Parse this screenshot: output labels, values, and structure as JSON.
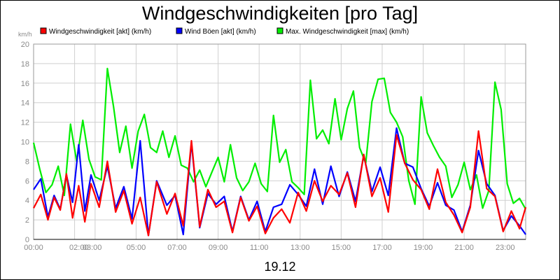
{
  "chart_data": {
    "type": "line",
    "title": "Windgeschwindigkeiten [pro Tag]",
    "date_label": "19.12",
    "ylabel": "km/h",
    "ylim": [
      0,
      20
    ],
    "yticks": [
      0,
      2,
      4,
      6,
      8,
      10,
      12,
      14,
      16,
      18,
      20
    ],
    "xlim": [
      0,
      24
    ],
    "xticks": [
      {
        "h": 0,
        "label": "00:00"
      },
      {
        "h": 2,
        "label": "02:00"
      },
      {
        "h": 3,
        "label": "03:00"
      },
      {
        "h": 5,
        "label": "05:00"
      },
      {
        "h": 7,
        "label": "07:00"
      },
      {
        "h": 9,
        "label": "09:00"
      },
      {
        "h": 11,
        "label": "11:00"
      },
      {
        "h": 13,
        "label": "13:00"
      },
      {
        "h": 15,
        "label": "15:00"
      },
      {
        "h": 17,
        "label": "17:00"
      },
      {
        "h": 19,
        "label": "19:00"
      },
      {
        "h": 21,
        "label": "21:00"
      },
      {
        "h": 23,
        "label": "23:00"
      }
    ],
    "grid": true,
    "legend_position": "top",
    "x_unit": "hour of day (0-24)",
    "series": [
      {
        "name": "Windgeschwindigkeit [akt] (km/h)",
        "color": "#ff0000",
        "x": [
          0,
          0.35,
          0.7,
          1.0,
          1.3,
          1.6,
          1.9,
          2.2,
          2.5,
          2.8,
          3.2,
          3.6,
          4.0,
          4.4,
          4.8,
          5.2,
          5.6,
          6.0,
          6.5,
          6.9,
          7.3,
          7.7,
          8.1,
          8.5,
          8.9,
          9.3,
          9.7,
          10.1,
          10.5,
          10.9,
          11.3,
          11.7,
          12.1,
          12.5,
          12.9,
          13.3,
          13.7,
          14.1,
          14.5,
          14.9,
          15.3,
          15.7,
          16.1,
          16.5,
          16.9,
          17.3,
          17.7,
          18.1,
          18.5,
          18.9,
          19.3,
          19.7,
          20.1,
          20.5,
          20.9,
          21.3,
          21.7,
          22.1,
          22.5,
          22.9,
          23.3,
          23.7,
          24.0
        ],
        "y": [
          3.2,
          4.6,
          2.0,
          4.3,
          3.0,
          6.7,
          2.2,
          5.5,
          1.8,
          5.7,
          3.3,
          8.0,
          2.8,
          5.0,
          1.6,
          4.3,
          0.4,
          5.9,
          2.6,
          4.7,
          1.4,
          10.1,
          1.3,
          5.1,
          3.3,
          3.9,
          0.7,
          4.3,
          1.9,
          3.4,
          0.6,
          2.2,
          3.1,
          1.7,
          4.8,
          2.9,
          6.0,
          3.9,
          5.5,
          4.6,
          6.8,
          3.3,
          8.7,
          4.4,
          6.3,
          2.8,
          10.7,
          7.8,
          6.1,
          5.1,
          3.1,
          7.2,
          3.8,
          2.5,
          0.7,
          3.3,
          11.1,
          5.2,
          4.4,
          0.8,
          2.9,
          1.1,
          3.3
        ]
      },
      {
        "name": "Wind Böen [akt] (km/h)",
        "color": "#0000ff",
        "x": [
          0,
          0.35,
          0.7,
          1.0,
          1.3,
          1.6,
          1.9,
          2.2,
          2.5,
          2.8,
          3.2,
          3.6,
          4.0,
          4.4,
          4.8,
          5.2,
          5.6,
          6.0,
          6.5,
          6.9,
          7.3,
          7.7,
          8.1,
          8.5,
          8.9,
          9.3,
          9.7,
          10.1,
          10.5,
          10.9,
          11.3,
          11.7,
          12.1,
          12.5,
          12.9,
          13.3,
          13.7,
          14.1,
          14.5,
          14.9,
          15.3,
          15.7,
          16.1,
          16.5,
          16.9,
          17.3,
          17.7,
          18.1,
          18.5,
          18.9,
          19.3,
          19.7,
          20.1,
          20.5,
          20.9,
          21.3,
          21.7,
          22.1,
          22.5,
          22.9,
          23.3,
          23.7,
          24.0
        ],
        "y": [
          5.1,
          6.2,
          2.3,
          4.5,
          3.1,
          6.6,
          3.8,
          9.7,
          2.9,
          6.6,
          4.0,
          7.5,
          3.2,
          5.4,
          2.1,
          10.1,
          0.4,
          6.0,
          3.5,
          4.5,
          0.5,
          9.9,
          1.2,
          4.7,
          3.6,
          4.4,
          0.8,
          4.4,
          2.0,
          3.9,
          0.8,
          3.3,
          3.6,
          5.6,
          4.6,
          3.4,
          7.2,
          3.6,
          7.5,
          4.4,
          6.9,
          3.9,
          8.6,
          4.9,
          7.4,
          4.5,
          11.4,
          7.8,
          7.4,
          5.2,
          3.4,
          5.8,
          3.5,
          3.0,
          0.8,
          3.5,
          9.1,
          5.7,
          4.5,
          0.9,
          2.4,
          1.4,
          0.5
        ]
      },
      {
        "name": "Max. Windgeschwindigkeit [max] (km/h)",
        "color": "#00ee00",
        "x": [
          0,
          0.3,
          0.6,
          0.9,
          1.2,
          1.5,
          1.8,
          2.1,
          2.4,
          2.7,
          3.0,
          3.3,
          3.6,
          3.9,
          4.2,
          4.5,
          4.8,
          5.1,
          5.4,
          5.7,
          6.0,
          6.3,
          6.6,
          6.9,
          7.2,
          7.5,
          7.8,
          8.1,
          8.4,
          8.7,
          9.0,
          9.3,
          9.6,
          9.9,
          10.2,
          10.5,
          10.8,
          11.1,
          11.4,
          11.7,
          12.0,
          12.3,
          12.6,
          12.9,
          13.2,
          13.5,
          13.8,
          14.1,
          14.4,
          14.7,
          15.0,
          15.3,
          15.6,
          15.9,
          16.2,
          16.5,
          16.8,
          17.1,
          17.4,
          17.7,
          18.0,
          18.3,
          18.6,
          18.9,
          19.2,
          19.5,
          19.8,
          20.1,
          20.4,
          20.7,
          21.0,
          21.3,
          21.6,
          21.9,
          22.2,
          22.5,
          22.8,
          23.1,
          23.4,
          23.7,
          24.0
        ],
        "y": [
          9.9,
          7.2,
          4.8,
          5.6,
          7.5,
          4.5,
          11.8,
          8.0,
          12.2,
          8.2,
          6.4,
          6.1,
          17.5,
          13.6,
          8.9,
          11.6,
          7.3,
          11.1,
          12.8,
          9.4,
          8.9,
          11.1,
          8.4,
          10.6,
          7.6,
          7.3,
          5.9,
          7.1,
          5.4,
          6.9,
          8.4,
          5.9,
          9.7,
          6.3,
          5.0,
          5.9,
          7.8,
          5.7,
          4.9,
          12.7,
          7.9,
          9.2,
          5.9,
          5.3,
          4.6,
          16.3,
          10.3,
          11.2,
          9.8,
          14.4,
          10.2,
          13.4,
          15.2,
          9.4,
          7.8,
          14.1,
          16.4,
          16.5,
          13.0,
          12.0,
          10.5,
          6.0,
          3.6,
          14.6,
          10.9,
          9.6,
          8.4,
          7.5,
          4.3,
          5.6,
          7.9,
          5.1,
          6.6,
          3.2,
          5.0,
          16.1,
          13.3,
          5.7,
          3.7,
          4.2,
          3.1
        ]
      }
    ]
  }
}
